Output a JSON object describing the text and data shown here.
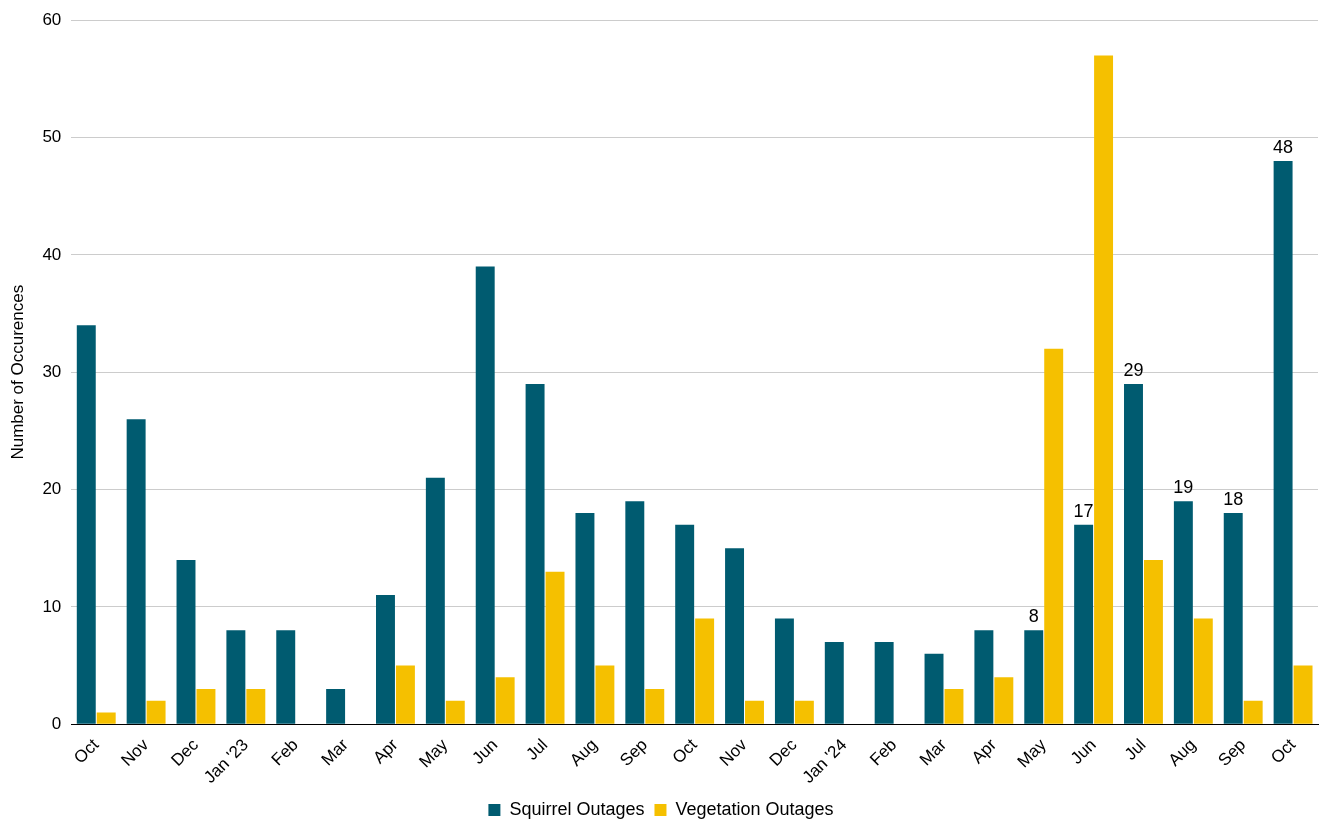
{
  "chart_data": {
    "type": "bar",
    "ylabel": "Number of Occurences",
    "categories": [
      "Oct",
      "Nov",
      "Dec",
      "Jan '23",
      "Feb",
      "Mar",
      "Apr",
      "May",
      "Jun",
      "Jul",
      "Aug",
      "Sep",
      "Oct",
      "Nov",
      "Dec",
      "Jan '24",
      "Feb",
      "Mar",
      "Apr",
      "May",
      "Jun",
      "Jul",
      "Aug",
      "Sep",
      "Oct"
    ],
    "series": [
      {
        "name": "Squirrel Outages",
        "color": "#005b70",
        "values": [
          34,
          26,
          14,
          8,
          8,
          3,
          11,
          21,
          39,
          29,
          18,
          19,
          17,
          15,
          9,
          7,
          7,
          6,
          8,
          8,
          17,
          29,
          19,
          18,
          48
        ],
        "value_labels": [
          null,
          null,
          null,
          null,
          null,
          null,
          null,
          null,
          null,
          null,
          null,
          null,
          null,
          null,
          null,
          null,
          null,
          null,
          null,
          "8",
          "17",
          "29",
          "19",
          "18",
          "48"
        ]
      },
      {
        "name": "Vegetation Outages",
        "color": "#f5c000",
        "values": [
          1,
          2,
          3,
          3,
          null,
          null,
          5,
          2,
          4,
          13,
          5,
          3,
          9,
          2,
          2,
          null,
          null,
          3,
          4,
          32,
          57,
          14,
          9,
          2,
          5
        ]
      }
    ],
    "ylim": [
      0,
      60
    ],
    "yticks": [
      0,
      10,
      20,
      30,
      40,
      50,
      60
    ],
    "grid": "y",
    "legend": "bottom"
  }
}
